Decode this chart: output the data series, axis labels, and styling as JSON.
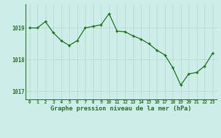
{
  "x": [
    0,
    1,
    2,
    3,
    4,
    5,
    6,
    7,
    8,
    9,
    10,
    11,
    12,
    13,
    14,
    15,
    16,
    17,
    18,
    19,
    20,
    21,
    22,
    23
  ],
  "y": [
    1019.0,
    1019.0,
    1019.2,
    1018.85,
    1018.6,
    1018.45,
    1018.6,
    1019.0,
    1019.05,
    1019.1,
    1019.45,
    1018.9,
    1018.88,
    1018.75,
    1018.65,
    1018.5,
    1018.3,
    1018.15,
    1017.75,
    1017.2,
    1017.55,
    1017.6,
    1017.8,
    1018.2
  ],
  "line_color": "#1a6b1a",
  "marker_color": "#1a6b1a",
  "bg_color": "#cceee8",
  "grid_color": "#b8d8d0",
  "axis_color": "#2d6b2d",
  "ylabel_values": [
    1017,
    1018,
    1019
  ],
  "xlabel_label": "Graphe pression niveau de la mer (hPa)",
  "ylim": [
    1016.75,
    1019.75
  ],
  "xlim": [
    -0.5,
    23.5
  ]
}
